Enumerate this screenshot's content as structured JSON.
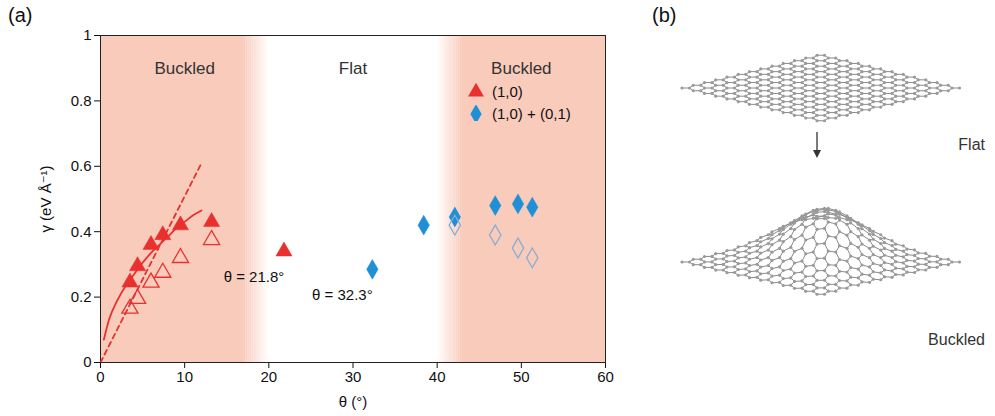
{
  "chart_data": {
    "type": "scatter",
    "panel": "(a)",
    "x_label": "θ (°)",
    "y_label": "γ (eV Å⁻¹)",
    "xlim": [
      0,
      60
    ],
    "xticks": [
      0,
      10,
      20,
      30,
      40,
      50,
      60
    ],
    "ylim": [
      0,
      1
    ],
    "yticks": [
      0,
      0.2,
      0.4,
      0.6,
      0.8,
      1
    ],
    "grid": false,
    "legend": "top-right",
    "regions": [
      {
        "label": "Buckled",
        "x": [
          0,
          20
        ],
        "color": "#f8cbbb"
      },
      {
        "label": "Flat",
        "x": [
          20,
          40
        ]
      },
      {
        "label": "Buckled",
        "x": [
          40,
          60
        ],
        "color": "#f8cbbb"
      }
    ],
    "series": [
      {
        "type": "line",
        "line_style": "dashed",
        "color": "#e8302f",
        "x": [
          0,
          12
        ],
        "values": [
          0,
          0.61
        ]
      },
      {
        "type": "line",
        "line_style": "solid",
        "color": "#e8302f",
        "x": [
          0.4,
          1,
          2,
          3,
          4,
          5,
          6,
          7,
          8,
          9,
          10,
          11,
          12
        ],
        "values": [
          0.07,
          0.13,
          0.19,
          0.235,
          0.27,
          0.305,
          0.335,
          0.36,
          0.385,
          0.41,
          0.43,
          0.45,
          0.465
        ]
      },
      {
        "type": "scatter",
        "name": "(1,0)",
        "marker": "triangle",
        "color": "#e8302f",
        "x": [
          3.5,
          4.4,
          6,
          7.4,
          9.5,
          13.2,
          21.8
        ],
        "values": [
          0.245,
          0.295,
          0.36,
          0.39,
          0.42,
          0.43,
          0.34
        ]
      },
      {
        "type": "scatter",
        "marker": "open-triangle",
        "color": "#e8302f",
        "x": [
          3.5,
          4.4,
          6,
          7.4,
          9.5,
          13.2
        ],
        "values": [
          0.165,
          0.195,
          0.245,
          0.275,
          0.32,
          0.375
        ]
      },
      {
        "type": "scatter",
        "name": "(1,0) + (0,1)",
        "marker": "diamond",
        "color": "#1f8fd6",
        "x": [
          32.3,
          38.4,
          42.1,
          46.9,
          49.6,
          51.3
        ],
        "values": [
          0.285,
          0.42,
          0.445,
          0.48,
          0.485,
          0.475
        ]
      },
      {
        "type": "scatter",
        "marker": "open-diamond",
        "color": "#8aaed3",
        "x": [
          42.1,
          46.9,
          49.6,
          51.3
        ],
        "values": [
          0.42,
          0.39,
          0.35,
          0.32
        ]
      }
    ],
    "annotations": [
      {
        "text": "θ = 21.8°",
        "x": 21.8,
        "y": 0.34
      },
      {
        "text": "θ = 32.3°",
        "x": 32.3,
        "y": 0.285
      }
    ]
  },
  "diagram": {
    "panel": "(b)",
    "top_label": "Flat",
    "bottom_label": "Buckled"
  }
}
